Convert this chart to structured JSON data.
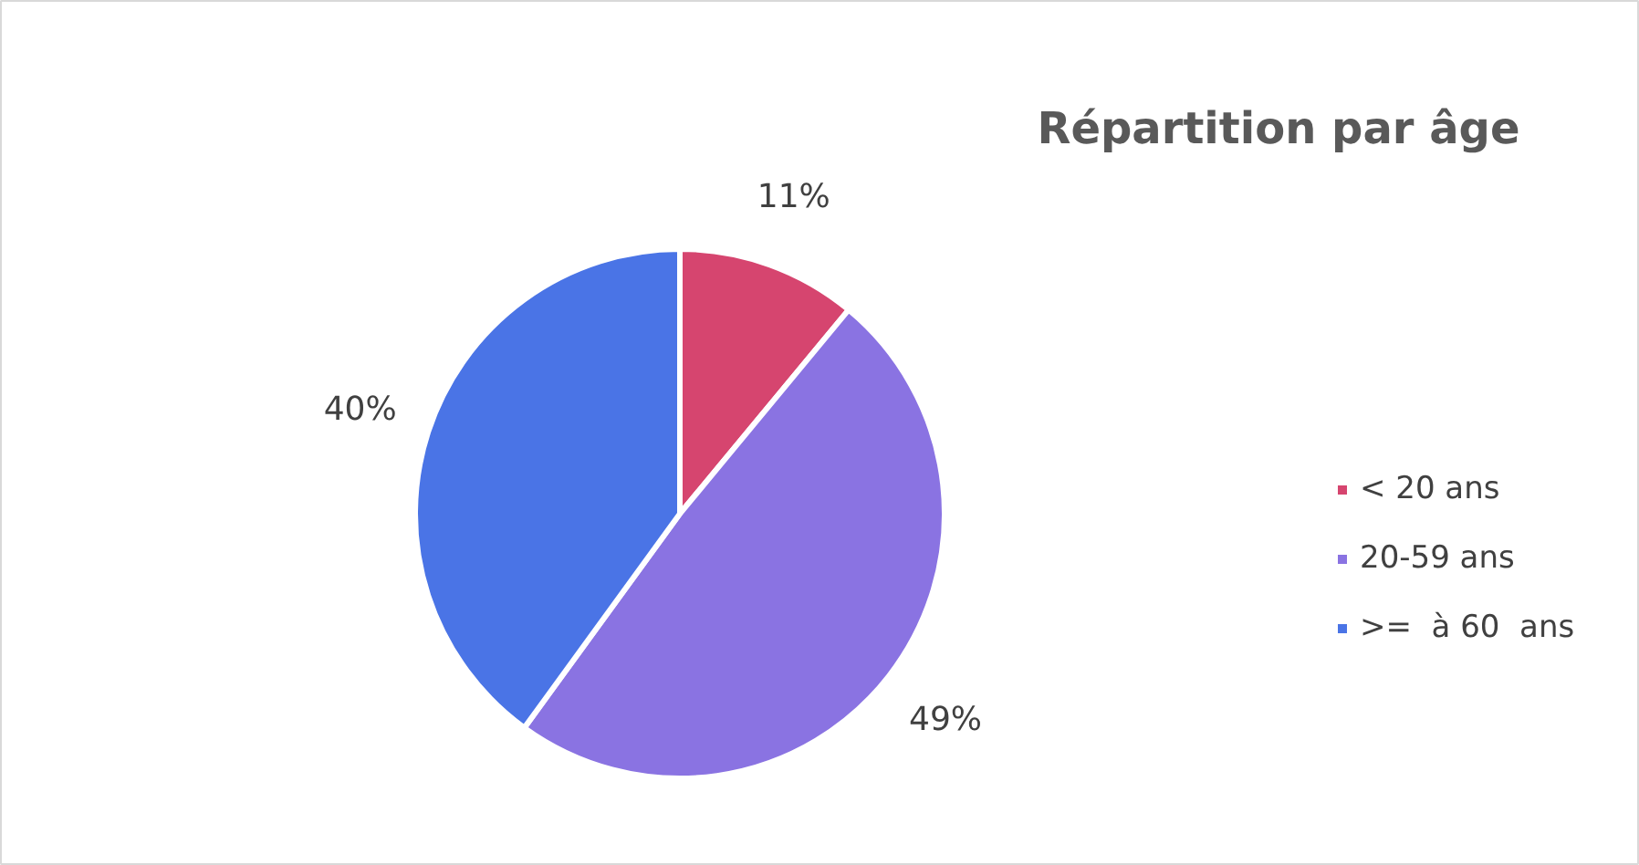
{
  "chart_data": {
    "type": "pie",
    "title": "Répartition par âge",
    "categories": [
      "< 20 ans",
      "20-59 ans",
      ">=  à 60  ans"
    ],
    "values": [
      11,
      49,
      40
    ],
    "colors": [
      "#d6456f",
      "#8a73e2",
      "#4a74e6"
    ],
    "value_labels": [
      "11%",
      "49%",
      "40%"
    ],
    "legend": "right"
  }
}
